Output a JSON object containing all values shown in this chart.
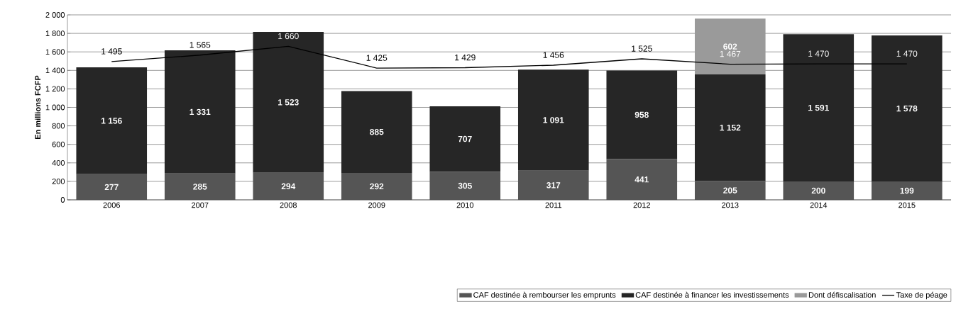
{
  "chart_data": {
    "type": "bar",
    "stacked": true,
    "ylabel": "En millions FCFP",
    "categories": [
      "2006",
      "2007",
      "2008",
      "2009",
      "2010",
      "2011",
      "2012",
      "2013",
      "2014",
      "2015"
    ],
    "series": [
      {
        "name": "CAF destinée à rembourser les emprunts",
        "color": "#555555",
        "values": [
          277,
          285,
          294,
          292,
          305,
          317,
          441,
          205,
          200,
          199
        ],
        "value_labels": [
          "277",
          "285",
          "294",
          "292",
          "305",
          "317",
          "441",
          "205",
          "200",
          "199"
        ]
      },
      {
        "name": "CAF destinée à financer les investissements",
        "color": "#262626",
        "values": [
          1156,
          1331,
          1523,
          885,
          707,
          1091,
          958,
          1152,
          1591,
          1578
        ],
        "value_labels": [
          "1 156",
          "1 331",
          "1 523",
          "885",
          "707",
          "1 091",
          "958",
          "1 152",
          "1 591",
          "1 578"
        ]
      },
      {
        "name": "Dont défiscalisation",
        "color": "#9a9a9a",
        "values": [
          null,
          null,
          null,
          null,
          null,
          null,
          null,
          602,
          null,
          null
        ],
        "value_labels": [
          null,
          null,
          null,
          null,
          null,
          null,
          null,
          "602",
          null,
          null
        ]
      },
      {
        "name": "Taxe de péage",
        "type": "line",
        "color": "#000000",
        "values": [
          1495,
          1565,
          1660,
          1425,
          1429,
          1456,
          1525,
          1467,
          1470,
          1470
        ],
        "value_labels": [
          "1 495",
          "1 565",
          "1 660",
          "1 425",
          "1 429",
          "1 456",
          "1 525",
          "1 467",
          "1 470",
          "1 470"
        ]
      }
    ],
    "ylim": [
      0,
      2000
    ],
    "yticks": [
      {
        "value": 0,
        "label": "0"
      },
      {
        "value": 200,
        "label": "200"
      },
      {
        "value": 400,
        "label": "400"
      },
      {
        "value": 600,
        "label": "600"
      },
      {
        "value": 800,
        "label": "800"
      },
      {
        "value": 1000,
        "label": "1 000"
      },
      {
        "value": 1200,
        "label": "1 200"
      },
      {
        "value": 1400,
        "label": "1 400"
      },
      {
        "value": 1600,
        "label": "1 600"
      },
      {
        "value": 1800,
        "label": "1 800"
      },
      {
        "value": 2000,
        "label": "2 000"
      }
    ],
    "grid": "y",
    "legend": "bottom right",
    "marker": "none",
    "line_style": "solid"
  }
}
